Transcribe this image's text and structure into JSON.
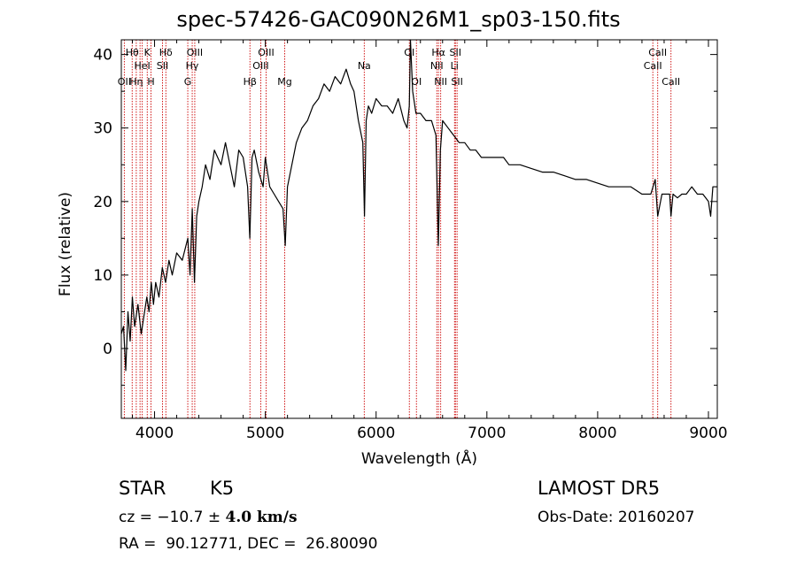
{
  "header": {
    "title": "spec-57426-GAC090N26M1_sp03-150.fits"
  },
  "info": {
    "object_class": "STAR",
    "subclass": "K5",
    "survey": "LAMOST DR5",
    "cz_prefix": "cz = −10.7 ± ",
    "cz_error": "4.0 km/s",
    "obs_date": "Obs-Date: 20160207",
    "ra_dec": "RA =  90.12771, DEC =  26.80090"
  },
  "chart_data": {
    "type": "line",
    "title": "spec-57426-GAC090N26M1_sp03-150.fits",
    "xlabel": "Wavelength (Å)",
    "ylabel": "Flux (relative)",
    "xlim": [
      3700,
      9080
    ],
    "ylim": [
      -9.5,
      42
    ],
    "x_ticks": [
      4000,
      5000,
      6000,
      7000,
      8000,
      9000
    ],
    "y_ticks": [
      0,
      10,
      20,
      30,
      40
    ],
    "grid": false,
    "series": [
      {
        "color": "#000000",
        "x": [
          3700,
          3720,
          3740,
          3760,
          3780,
          3800,
          3820,
          3850,
          3880,
          3900,
          3930,
          3950,
          3970,
          3990,
          4010,
          4040,
          4070,
          4100,
          4130,
          4160,
          4200,
          4250,
          4300,
          4320,
          4340,
          4360,
          4380,
          4400,
          4430,
          4460,
          4500,
          4540,
          4570,
          4600,
          4640,
          4680,
          4720,
          4760,
          4800,
          4840,
          4860,
          4880,
          4900,
          4940,
          4980,
          5000,
          5040,
          5080,
          5120,
          5160,
          5180,
          5200,
          5240,
          5280,
          5330,
          5380,
          5430,
          5480,
          5530,
          5580,
          5630,
          5680,
          5730,
          5770,
          5800,
          5840,
          5880,
          5895,
          5910,
          5930,
          5960,
          6000,
          6050,
          6100,
          6150,
          6200,
          6250,
          6280,
          6300,
          6310,
          6330,
          6360,
          6400,
          6450,
          6500,
          6540,
          6562,
          6580,
          6600,
          6650,
          6700,
          6750,
          6800,
          6850,
          6900,
          6950,
          7000,
          7050,
          7100,
          7150,
          7200,
          7300,
          7400,
          7500,
          7600,
          7700,
          7800,
          7900,
          8000,
          8100,
          8200,
          8300,
          8400,
          8480,
          8520,
          8542,
          8580,
          8620,
          8650,
          8662,
          8680,
          8720,
          8760,
          8800,
          8850,
          8900,
          8950,
          9000,
          9020,
          9040,
          9060,
          9080
        ],
        "y": [
          2,
          3,
          -3,
          5,
          1,
          7,
          3,
          6,
          2,
          4,
          7,
          5,
          9,
          6,
          9,
          7,
          11,
          9,
          12,
          10,
          13,
          12,
          15,
          10,
          19,
          9,
          18,
          20,
          22,
          25,
          23,
          27,
          26,
          25,
          28,
          25,
          22,
          27,
          26,
          22,
          15,
          26,
          27,
          24,
          22,
          26,
          22,
          21,
          20,
          19,
          14,
          22,
          25,
          28,
          30,
          31,
          33,
          34,
          36,
          35,
          37,
          36,
          38,
          36,
          35,
          31,
          28,
          18,
          31,
          33,
          32,
          34,
          33,
          33,
          32,
          34,
          31,
          30,
          33,
          42,
          35,
          32,
          32,
          31,
          31,
          29,
          14,
          27,
          31,
          30,
          29,
          28,
          28,
          27,
          27,
          26,
          26,
          26,
          26,
          26,
          25,
          25,
          24.5,
          24,
          24,
          23.5,
          23,
          23,
          22.5,
          22,
          22,
          22,
          21,
          21,
          23,
          18,
          21,
          21,
          21,
          18,
          21,
          20.5,
          21,
          21,
          22,
          21,
          21,
          20,
          18,
          22,
          22,
          22
        ]
      }
    ],
    "line_markers": [
      {
        "wavelength": 3727,
        "label": "OII",
        "row": 3
      },
      {
        "wavelength": 3798,
        "label": "Hθ",
        "row": 1
      },
      {
        "wavelength": 3835,
        "label": "Hη",
        "row": 3
      },
      {
        "wavelength": 3869,
        "label": "",
        "row": 0
      },
      {
        "wavelength": 3889,
        "label": "HeI",
        "row": 2
      },
      {
        "wavelength": 3934,
        "label": "K",
        "row": 1
      },
      {
        "wavelength": 3968,
        "label": "H",
        "row": 3
      },
      {
        "wavelength": 4072,
        "label": "SII",
        "row": 2
      },
      {
        "wavelength": 4102,
        "label": "Hδ",
        "row": 1
      },
      {
        "wavelength": 4300,
        "label": "G",
        "row": 3
      },
      {
        "wavelength": 4340,
        "label": "Hγ",
        "row": 2
      },
      {
        "wavelength": 4363,
        "label": "OIII",
        "row": 1
      },
      {
        "wavelength": 4861,
        "label": "Hβ",
        "row": 3
      },
      {
        "wavelength": 4959,
        "label": "OIII",
        "row": 2
      },
      {
        "wavelength": 5007,
        "label": "OIII",
        "row": 1
      },
      {
        "wavelength": 5175,
        "label": "Mg",
        "row": 3
      },
      {
        "wavelength": 5893,
        "label": "Na",
        "row": 2
      },
      {
        "wavelength": 6300,
        "label": "OI",
        "row": 1
      },
      {
        "wavelength": 6364,
        "label": "OI",
        "row": 3
      },
      {
        "wavelength": 6548,
        "label": "NII",
        "row": 2
      },
      {
        "wavelength": 6563,
        "label": "Hα",
        "row": 1
      },
      {
        "wavelength": 6583,
        "label": "NII",
        "row": 3
      },
      {
        "wavelength": 6708,
        "label": "Li",
        "row": 2
      },
      {
        "wavelength": 6716,
        "label": "SII",
        "row": 1
      },
      {
        "wavelength": 6731,
        "label": "SII",
        "row": 3
      },
      {
        "wavelength": 8498,
        "label": "CaII",
        "row": 2
      },
      {
        "wavelength": 8542,
        "label": "CaII",
        "row": 1
      },
      {
        "wavelength": 8662,
        "label": "CaII",
        "row": 3
      }
    ],
    "marker_color": "#cc0000"
  }
}
